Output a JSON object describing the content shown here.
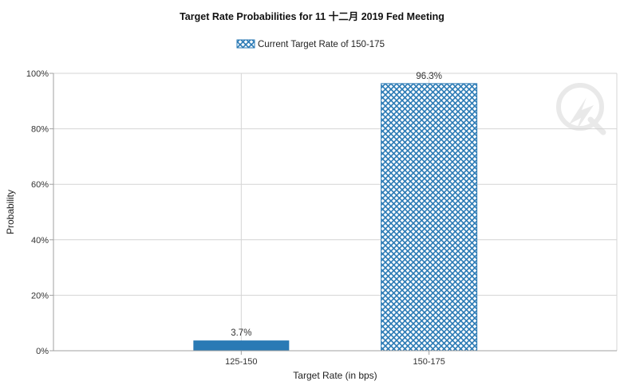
{
  "chart_data": {
    "type": "bar",
    "title": "Target Rate Probabilities for 11 十二月 2019 Fed Meeting",
    "xlabel": "Target Rate (in bps)",
    "ylabel": "Probability",
    "categories": [
      "125-150",
      "150-175"
    ],
    "values": [
      3.7,
      96.3
    ],
    "data_labels": [
      "3.7%",
      "96.3%"
    ],
    "ylim": [
      0,
      100
    ],
    "yticks": [
      "0%",
      "20%",
      "40%",
      "60%",
      "80%",
      "100%"
    ],
    "legend": {
      "position": "top-center",
      "entries": [
        "Current Target Rate of 150-175"
      ]
    },
    "highlighted_category": "150-175",
    "grid": true,
    "colors": {
      "bar": "#2a7ab5",
      "highlight_pattern": "#2a7ab5",
      "grid": "#d4d4d4",
      "axis": "#a0a0a0"
    }
  }
}
